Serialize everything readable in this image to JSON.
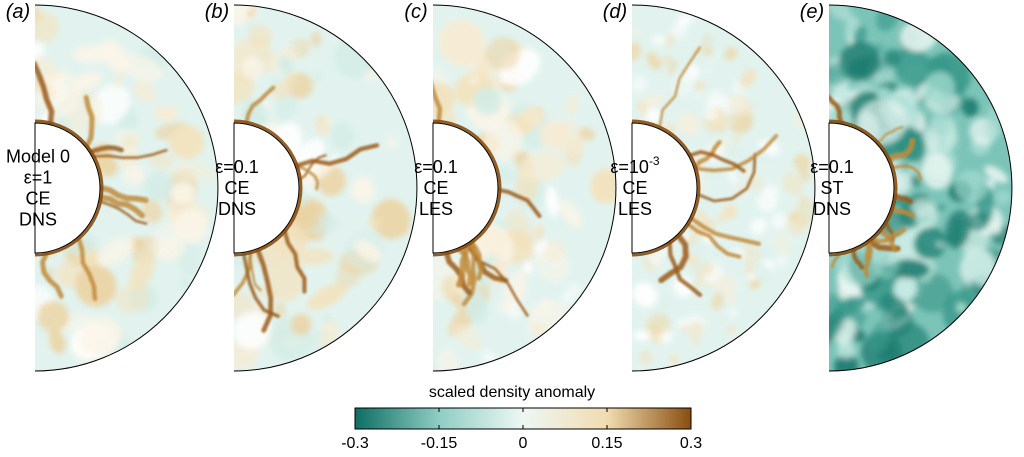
{
  "panels": [
    {
      "label": "(a)",
      "lines": [
        "Model 0",
        "ε=1",
        "CE",
        "DNS"
      ],
      "pattern": "warm-calm"
    },
    {
      "label": "(b)",
      "lines": [
        "ε=0.1",
        "CE",
        "DNS"
      ],
      "pattern": "warm-calm"
    },
    {
      "label": "(c)",
      "lines": [
        "ε=0.1",
        "CE",
        "LES"
      ],
      "pattern": "warm-calm"
    },
    {
      "label": "(d)",
      "lines": [
        "ε=10^-3",
        "CE",
        "LES"
      ],
      "pattern": "speckled"
    },
    {
      "label": "(e)",
      "lines": [
        "ε=0.1",
        "ST",
        "DNS"
      ],
      "pattern": "teal-dense"
    }
  ],
  "superscript": {
    "base": "ε=10",
    "exp": "-3"
  },
  "colorbar": {
    "title": "scaled density anomaly",
    "ticks": [
      "-0.3",
      "-0.15",
      "0",
      "0.15",
      "0.3"
    ],
    "colors": {
      "low": "#0e6e63",
      "midlow": "#8fcdc3",
      "mid": "#eef7f4",
      "midhigh": "#f1dcb0",
      "high": "#8a4e10"
    }
  }
}
